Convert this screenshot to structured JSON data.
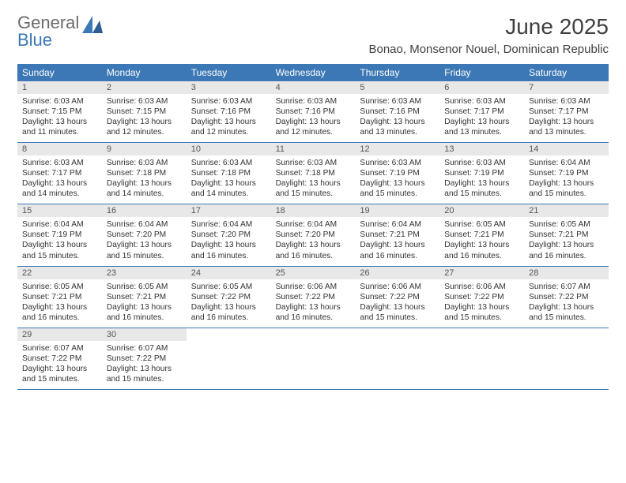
{
  "logo": {
    "text_general": "General",
    "text_blue": "Blue"
  },
  "title": "June 2025",
  "location": "Bonao, Monsenor Nouel, Dominican Republic",
  "colors": {
    "header_bg": "#3b78b5",
    "daynum_bg": "#e8e8e8",
    "border": "#3b78b5",
    "text": "#333333",
    "logo_gray": "#6a6a6a",
    "logo_blue": "#3b78b5"
  },
  "day_names": [
    "Sunday",
    "Monday",
    "Tuesday",
    "Wednesday",
    "Thursday",
    "Friday",
    "Saturday"
  ],
  "weeks": [
    [
      {
        "num": "1",
        "sunrise": "Sunrise: 6:03 AM",
        "sunset": "Sunset: 7:15 PM",
        "daylight": "Daylight: 13 hours and 11 minutes."
      },
      {
        "num": "2",
        "sunrise": "Sunrise: 6:03 AM",
        "sunset": "Sunset: 7:15 PM",
        "daylight": "Daylight: 13 hours and 12 minutes."
      },
      {
        "num": "3",
        "sunrise": "Sunrise: 6:03 AM",
        "sunset": "Sunset: 7:16 PM",
        "daylight": "Daylight: 13 hours and 12 minutes."
      },
      {
        "num": "4",
        "sunrise": "Sunrise: 6:03 AM",
        "sunset": "Sunset: 7:16 PM",
        "daylight": "Daylight: 13 hours and 12 minutes."
      },
      {
        "num": "5",
        "sunrise": "Sunrise: 6:03 AM",
        "sunset": "Sunset: 7:16 PM",
        "daylight": "Daylight: 13 hours and 13 minutes."
      },
      {
        "num": "6",
        "sunrise": "Sunrise: 6:03 AM",
        "sunset": "Sunset: 7:17 PM",
        "daylight": "Daylight: 13 hours and 13 minutes."
      },
      {
        "num": "7",
        "sunrise": "Sunrise: 6:03 AM",
        "sunset": "Sunset: 7:17 PM",
        "daylight": "Daylight: 13 hours and 13 minutes."
      }
    ],
    [
      {
        "num": "8",
        "sunrise": "Sunrise: 6:03 AM",
        "sunset": "Sunset: 7:17 PM",
        "daylight": "Daylight: 13 hours and 14 minutes."
      },
      {
        "num": "9",
        "sunrise": "Sunrise: 6:03 AM",
        "sunset": "Sunset: 7:18 PM",
        "daylight": "Daylight: 13 hours and 14 minutes."
      },
      {
        "num": "10",
        "sunrise": "Sunrise: 6:03 AM",
        "sunset": "Sunset: 7:18 PM",
        "daylight": "Daylight: 13 hours and 14 minutes."
      },
      {
        "num": "11",
        "sunrise": "Sunrise: 6:03 AM",
        "sunset": "Sunset: 7:18 PM",
        "daylight": "Daylight: 13 hours and 15 minutes."
      },
      {
        "num": "12",
        "sunrise": "Sunrise: 6:03 AM",
        "sunset": "Sunset: 7:19 PM",
        "daylight": "Daylight: 13 hours and 15 minutes."
      },
      {
        "num": "13",
        "sunrise": "Sunrise: 6:03 AM",
        "sunset": "Sunset: 7:19 PM",
        "daylight": "Daylight: 13 hours and 15 minutes."
      },
      {
        "num": "14",
        "sunrise": "Sunrise: 6:04 AM",
        "sunset": "Sunset: 7:19 PM",
        "daylight": "Daylight: 13 hours and 15 minutes."
      }
    ],
    [
      {
        "num": "15",
        "sunrise": "Sunrise: 6:04 AM",
        "sunset": "Sunset: 7:19 PM",
        "daylight": "Daylight: 13 hours and 15 minutes."
      },
      {
        "num": "16",
        "sunrise": "Sunrise: 6:04 AM",
        "sunset": "Sunset: 7:20 PM",
        "daylight": "Daylight: 13 hours and 15 minutes."
      },
      {
        "num": "17",
        "sunrise": "Sunrise: 6:04 AM",
        "sunset": "Sunset: 7:20 PM",
        "daylight": "Daylight: 13 hours and 16 minutes."
      },
      {
        "num": "18",
        "sunrise": "Sunrise: 6:04 AM",
        "sunset": "Sunset: 7:20 PM",
        "daylight": "Daylight: 13 hours and 16 minutes."
      },
      {
        "num": "19",
        "sunrise": "Sunrise: 6:04 AM",
        "sunset": "Sunset: 7:21 PM",
        "daylight": "Daylight: 13 hours and 16 minutes."
      },
      {
        "num": "20",
        "sunrise": "Sunrise: 6:05 AM",
        "sunset": "Sunset: 7:21 PM",
        "daylight": "Daylight: 13 hours and 16 minutes."
      },
      {
        "num": "21",
        "sunrise": "Sunrise: 6:05 AM",
        "sunset": "Sunset: 7:21 PM",
        "daylight": "Daylight: 13 hours and 16 minutes."
      }
    ],
    [
      {
        "num": "22",
        "sunrise": "Sunrise: 6:05 AM",
        "sunset": "Sunset: 7:21 PM",
        "daylight": "Daylight: 13 hours and 16 minutes."
      },
      {
        "num": "23",
        "sunrise": "Sunrise: 6:05 AM",
        "sunset": "Sunset: 7:21 PM",
        "daylight": "Daylight: 13 hours and 16 minutes."
      },
      {
        "num": "24",
        "sunrise": "Sunrise: 6:05 AM",
        "sunset": "Sunset: 7:22 PM",
        "daylight": "Daylight: 13 hours and 16 minutes."
      },
      {
        "num": "25",
        "sunrise": "Sunrise: 6:06 AM",
        "sunset": "Sunset: 7:22 PM",
        "daylight": "Daylight: 13 hours and 16 minutes."
      },
      {
        "num": "26",
        "sunrise": "Sunrise: 6:06 AM",
        "sunset": "Sunset: 7:22 PM",
        "daylight": "Daylight: 13 hours and 15 minutes."
      },
      {
        "num": "27",
        "sunrise": "Sunrise: 6:06 AM",
        "sunset": "Sunset: 7:22 PM",
        "daylight": "Daylight: 13 hours and 15 minutes."
      },
      {
        "num": "28",
        "sunrise": "Sunrise: 6:07 AM",
        "sunset": "Sunset: 7:22 PM",
        "daylight": "Daylight: 13 hours and 15 minutes."
      }
    ],
    [
      {
        "num": "29",
        "sunrise": "Sunrise: 6:07 AM",
        "sunset": "Sunset: 7:22 PM",
        "daylight": "Daylight: 13 hours and 15 minutes."
      },
      {
        "num": "30",
        "sunrise": "Sunrise: 6:07 AM",
        "sunset": "Sunset: 7:22 PM",
        "daylight": "Daylight: 13 hours and 15 minutes."
      },
      {
        "blank": true
      },
      {
        "blank": true
      },
      {
        "blank": true
      },
      {
        "blank": true
      },
      {
        "blank": true
      }
    ]
  ]
}
